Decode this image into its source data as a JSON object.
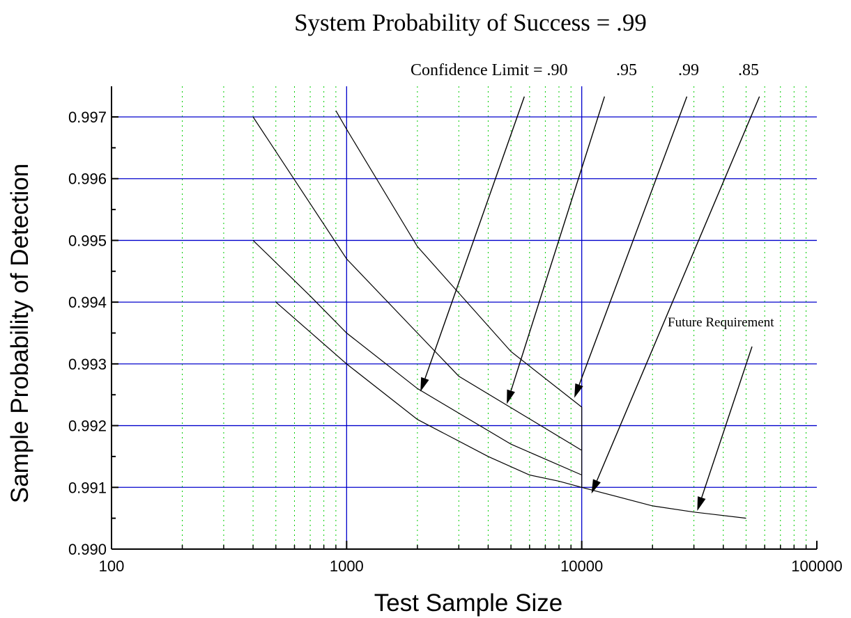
{
  "chart_data": {
    "type": "line",
    "title": "System Probability of Success = .99",
    "xlabel": "Test Sample Size",
    "ylabel": "Sample Probability of Detection",
    "xscale": "log",
    "xlim": [
      100,
      100000
    ],
    "ylim": [
      0.99,
      0.9975
    ],
    "x_tick_labels": [
      "100",
      "1000",
      "10000",
      "100000"
    ],
    "y_tick_labels": [
      "0.990",
      "0.991",
      "0.992",
      "0.993",
      "0.994",
      "0.995",
      "0.996",
      "0.997"
    ],
    "grid": {
      "major": true,
      "minor_x": true
    },
    "colors": {
      "major_grid": "#0000cc",
      "minor_grid": "#00cc00",
      "lines": "#000000",
      "axes": "#000000"
    },
    "series": [
      {
        "x": [
          900,
          1000,
          2000,
          5000,
          10000
        ],
        "y": [
          0.9971,
          0.9968,
          0.9949,
          0.9932,
          0.9923
        ]
      },
      {
        "x": [
          400,
          1000,
          2000,
          3000,
          10000
        ],
        "y": [
          0.997,
          0.9947,
          0.9935,
          0.9928,
          0.9916
        ]
      },
      {
        "x": [
          400,
          700,
          1000,
          2000,
          5000,
          10000
        ],
        "y": [
          0.995,
          0.9941,
          0.9935,
          0.9926,
          0.9917,
          0.9912
        ]
      },
      {
        "x": [
          500,
          1000,
          2000,
          4000,
          6000,
          8000,
          10000,
          20000,
          30000,
          50000
        ],
        "y": [
          0.994,
          0.993,
          0.9921,
          0.9915,
          0.9912,
          0.9911,
          0.991,
          0.9907,
          0.9906,
          0.9905
        ]
      }
    ],
    "annotations": [
      {
        "text": "Confidence Limit = .90"
      },
      {
        "text": ".95"
      },
      {
        "text": ".99"
      },
      {
        "text": ".85"
      },
      {
        "text": "Future Requirement"
      }
    ]
  }
}
